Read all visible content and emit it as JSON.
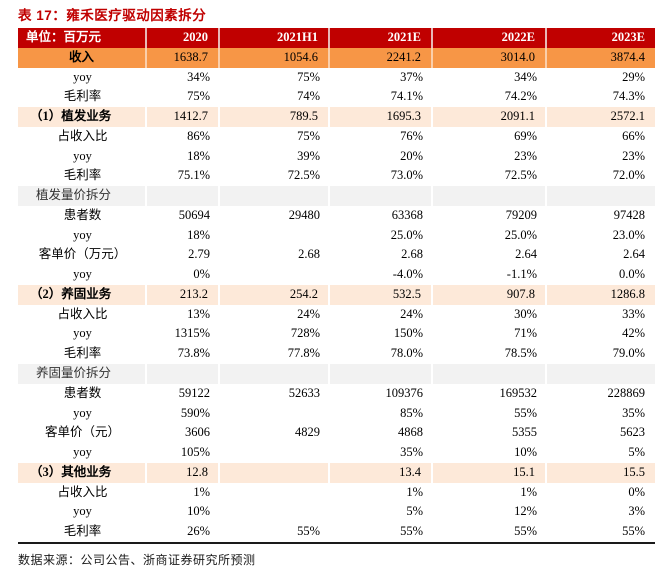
{
  "title": "表 17：雍禾医疗驱动因素拆分",
  "colors": {
    "title_color": "#C00000",
    "header_bg": "#C00000",
    "header_text": "#FFFFFF",
    "revenue_bg": "#F79646",
    "section_bg": "#FDE9D9",
    "breakdown_bg": "#F2F2F2"
  },
  "table": {
    "columns": [
      "单位：百万元",
      "2020",
      "2021H1",
      "2021E",
      "2022E",
      "2023E"
    ],
    "rows": [
      {
        "label": "收入",
        "style": "revenue",
        "values": [
          "1638.7",
          "1054.6",
          "2241.2",
          "3014.0",
          "3874.4"
        ]
      },
      {
        "label": "yoy",
        "style": "normal",
        "values": [
          "34%",
          "75%",
          "37%",
          "34%",
          "29%"
        ]
      },
      {
        "label": "毛利率",
        "style": "normal",
        "values": [
          "75%",
          "74%",
          "74.1%",
          "74.2%",
          "74.3%"
        ]
      },
      {
        "label": "（1）植发业务",
        "style": "section",
        "values": [
          "1412.7",
          "789.5",
          "1695.3",
          "2091.1",
          "2572.1"
        ]
      },
      {
        "label": "占收入比",
        "style": "normal",
        "values": [
          "86%",
          "75%",
          "76%",
          "69%",
          "66%"
        ]
      },
      {
        "label": "yoy",
        "style": "normal",
        "values": [
          "18%",
          "39%",
          "20%",
          "23%",
          "23%"
        ]
      },
      {
        "label": "毛利率",
        "style": "normal",
        "values": [
          "75.1%",
          "72.5%",
          "73.0%",
          "72.5%",
          "72.0%"
        ]
      },
      {
        "label": "植发量价拆分",
        "style": "breakdown",
        "values": [
          "",
          "",
          "",
          "",
          ""
        ]
      },
      {
        "label": "患者数",
        "style": "normal",
        "values": [
          "50694",
          "29480",
          "63368",
          "79209",
          "97428"
        ]
      },
      {
        "label": "yoy",
        "style": "normal",
        "values": [
          "18%",
          "",
          "25.0%",
          "25.0%",
          "23.0%"
        ]
      },
      {
        "label": "客单价（万元）",
        "style": "normal",
        "values": [
          "2.79",
          "2.68",
          "2.68",
          "2.64",
          "2.64"
        ]
      },
      {
        "label": "yoy",
        "style": "normal",
        "values": [
          "0%",
          "",
          "-4.0%",
          "-1.1%",
          "0.0%"
        ]
      },
      {
        "label": "（2）养固业务",
        "style": "section",
        "values": [
          "213.2",
          "254.2",
          "532.5",
          "907.8",
          "1286.8"
        ]
      },
      {
        "label": "占收入比",
        "style": "normal",
        "values": [
          "13%",
          "24%",
          "24%",
          "30%",
          "33%"
        ]
      },
      {
        "label": "yoy",
        "style": "normal",
        "values": [
          "1315%",
          "728%",
          "150%",
          "71%",
          "42%"
        ]
      },
      {
        "label": "毛利率",
        "style": "normal",
        "values": [
          "73.8%",
          "77.8%",
          "78.0%",
          "78.5%",
          "79.0%"
        ]
      },
      {
        "label": "养固量价拆分",
        "style": "breakdown",
        "values": [
          "",
          "",
          "",
          "",
          ""
        ]
      },
      {
        "label": "患者数",
        "style": "normal",
        "values": [
          "59122",
          "52633",
          "109376",
          "169532",
          "228869"
        ]
      },
      {
        "label": "yoy",
        "style": "normal",
        "values": [
          "590%",
          "",
          "85%",
          "55%",
          "35%"
        ]
      },
      {
        "label": "客单价（元）",
        "style": "normal",
        "values": [
          "3606",
          "4829",
          "4868",
          "5355",
          "5623"
        ]
      },
      {
        "label": "yoy",
        "style": "normal",
        "values": [
          "105%",
          "",
          "35%",
          "10%",
          "5%"
        ]
      },
      {
        "label": "（3）其他业务",
        "style": "section",
        "values": [
          "12.8",
          "",
          "13.4",
          "15.1",
          "15.5"
        ]
      },
      {
        "label": "占收入比",
        "style": "normal",
        "values": [
          "1%",
          "",
          "1%",
          "1%",
          "0%"
        ]
      },
      {
        "label": "yoy",
        "style": "normal",
        "values": [
          "10%",
          "",
          "5%",
          "12%",
          "3%"
        ]
      },
      {
        "label": "毛利率",
        "style": "normal",
        "values": [
          "26%",
          "55%",
          "55%",
          "55%",
          "55%"
        ]
      }
    ]
  },
  "footer": {
    "source": "数据来源：公司公告、浙商证券研究所预测"
  }
}
